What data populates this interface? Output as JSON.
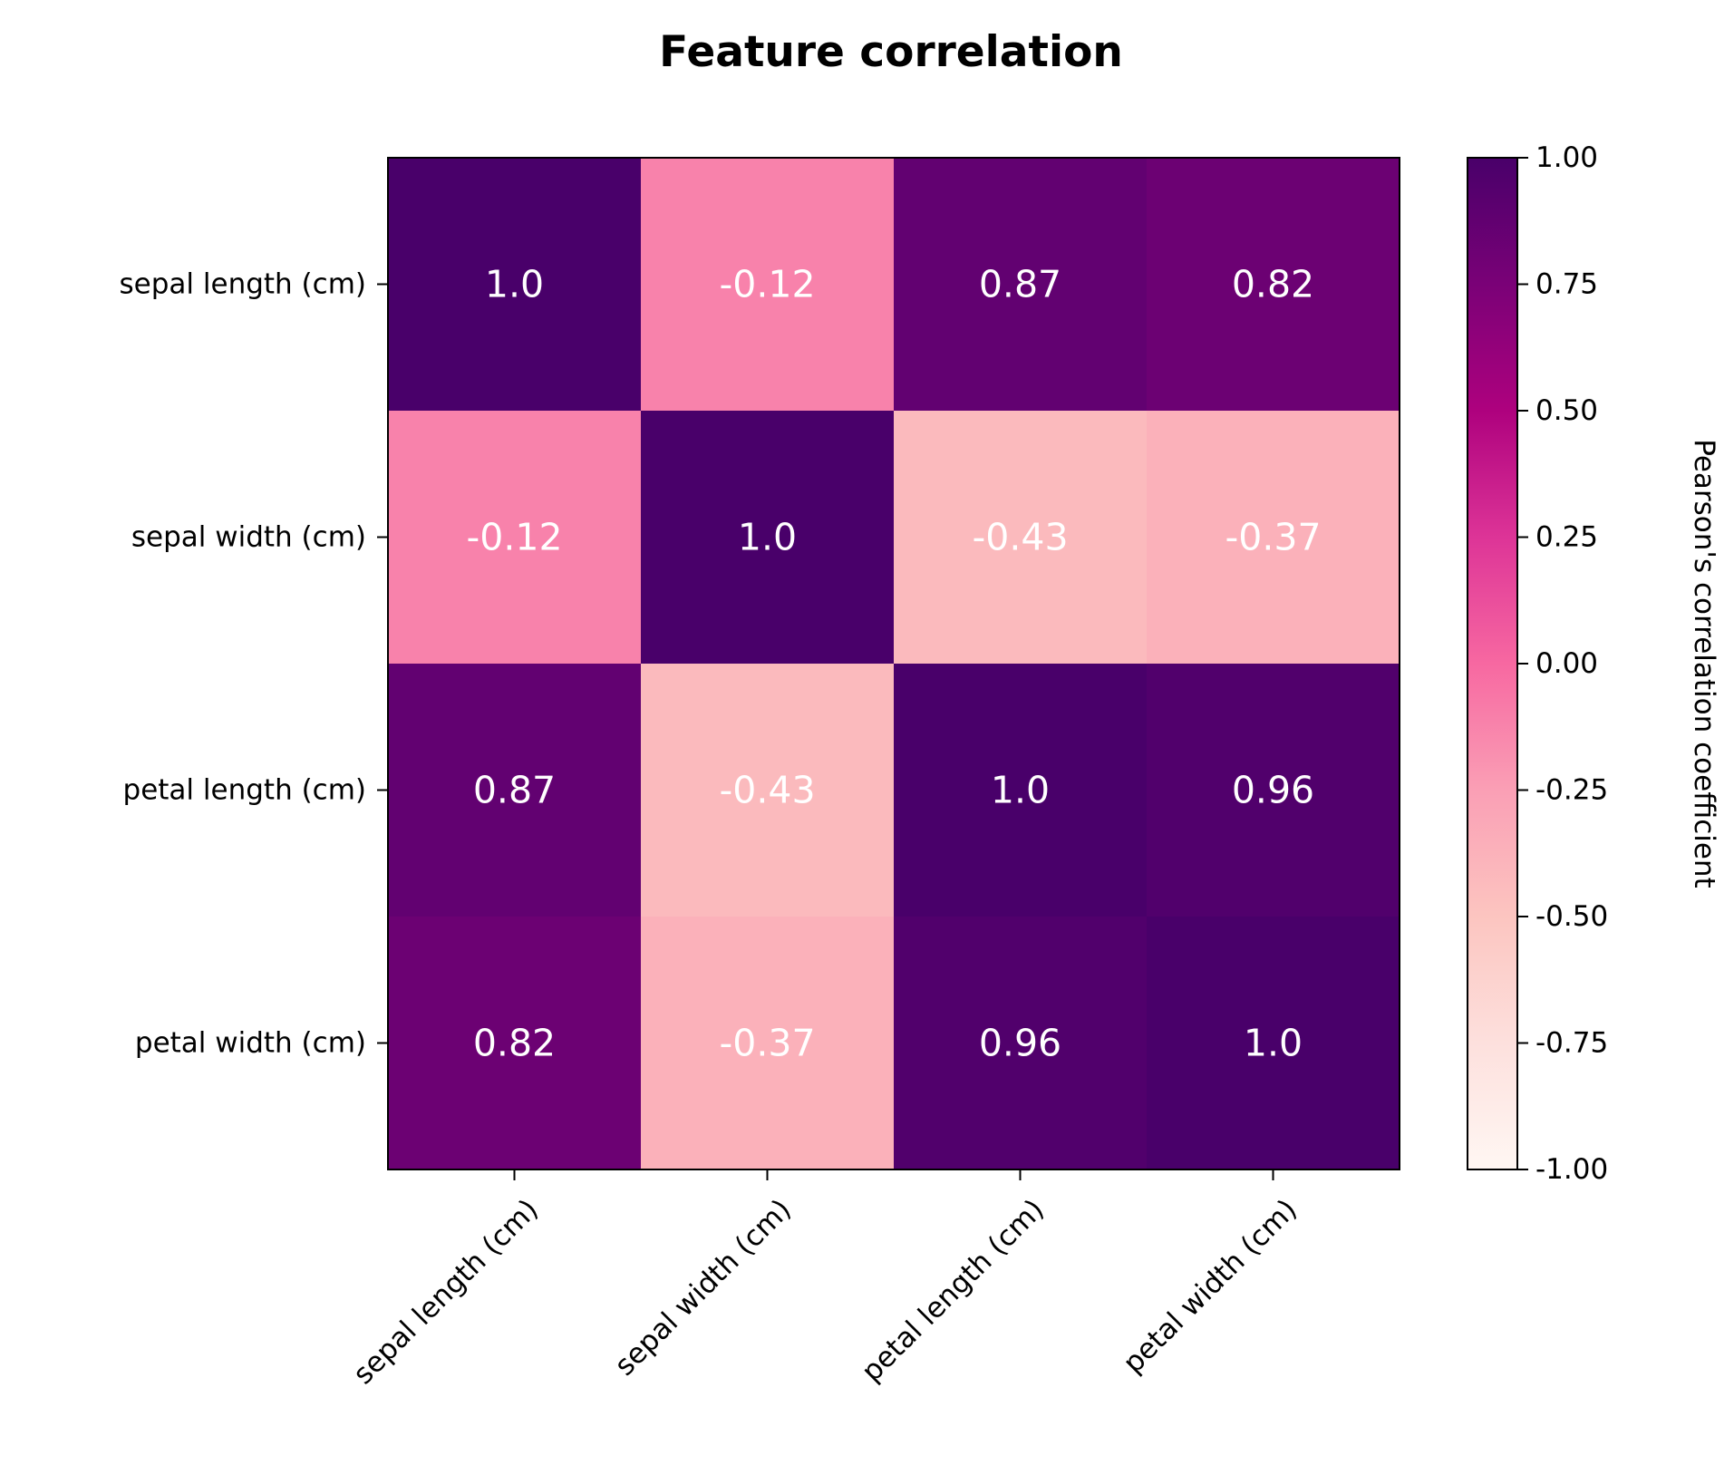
{
  "chart_data": {
    "type": "heatmap",
    "title": "Feature correlation",
    "rows": [
      "sepal length (cm)",
      "sepal width (cm)",
      "petal length (cm)",
      "petal width (cm)"
    ],
    "columns": [
      "sepal length (cm)",
      "sepal width (cm)",
      "petal length (cm)",
      "petal width (cm)"
    ],
    "values": [
      [
        1.0,
        -0.12,
        0.87,
        0.82
      ],
      [
        -0.12,
        1.0,
        -0.43,
        -0.37
      ],
      [
        0.87,
        -0.43,
        1.0,
        0.96
      ],
      [
        0.82,
        -0.37,
        0.96,
        1.0
      ]
    ],
    "cell_labels": [
      [
        "1.0",
        "-0.12",
        "0.87",
        "0.82"
      ],
      [
        "-0.12",
        "1.0",
        "-0.43",
        "-0.37"
      ],
      [
        "0.87",
        "-0.43",
        "1.0",
        "0.96"
      ],
      [
        "0.82",
        "-0.37",
        "0.96",
        "1.0"
      ]
    ],
    "colorbar": {
      "label": "Pearson's correlation coefficient",
      "range": [
        -1.0,
        1.0
      ],
      "ticks": [
        "-1.00",
        "-0.75",
        "-0.50",
        "-0.25",
        "0.00",
        "0.25",
        "0.50",
        "0.75",
        "1.00"
      ],
      "colormap": "RdPu",
      "colors": [
        "#fff7f3",
        "#fde0dd",
        "#fcc5c0",
        "#fa9fb5",
        "#f768a1",
        "#dd3497",
        "#ae017e",
        "#7a0177",
        "#49006a"
      ]
    },
    "cell_text_color": "#ffffff",
    "xtick_rotation_deg": 45,
    "legend": "colorbar-right"
  }
}
